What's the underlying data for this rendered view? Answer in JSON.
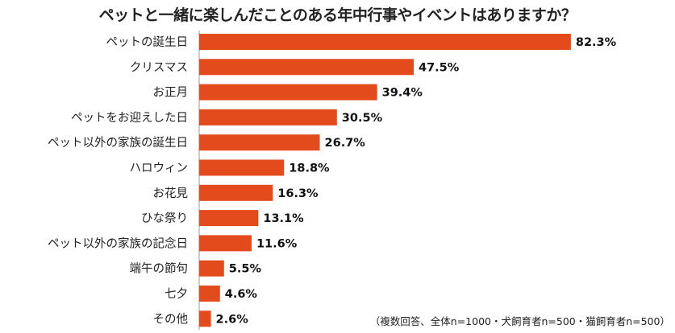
{
  "chart_data": {
    "type": "bar",
    "orientation": "horizontal",
    "title": "ペットと一緒に楽しんだことのある年中行事やイベントはありますか？",
    "categories": [
      "ペットの誕生日",
      "クリスマス",
      "お正月",
      "ペットをお迎えした日",
      "ペット以外の家族の誕生日",
      "ハロウィン",
      "お花見",
      "ひな祭り",
      "ペット以外の家族の記念日",
      "端午の節句",
      "七夕",
      "その他"
    ],
    "values": [
      82.3,
      47.5,
      39.4,
      30.5,
      26.7,
      18.8,
      16.3,
      13.1,
      11.6,
      5.5,
      4.6,
      2.6
    ],
    "value_format": "%",
    "xlim": [
      0,
      100
    ],
    "bar_color": "#e34a1c",
    "note": "（複数回答、全体n=1000・犬飼育者n=500・猫飼育者n=500）"
  }
}
